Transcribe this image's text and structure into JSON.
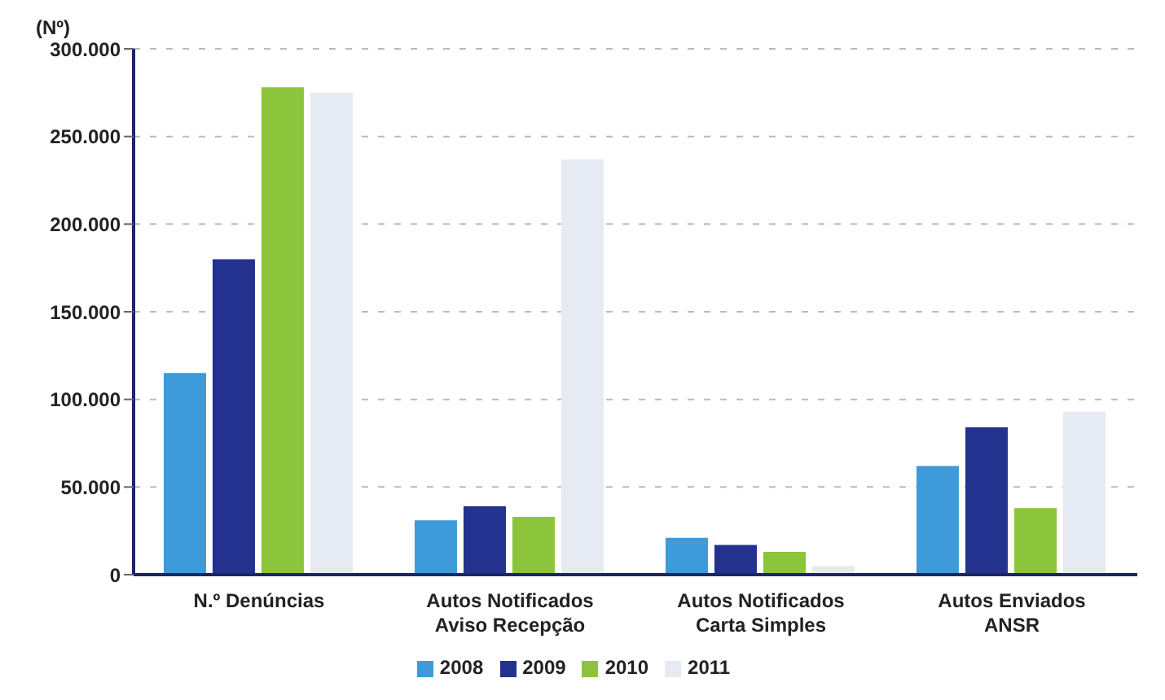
{
  "chart_data": {
    "type": "bar",
    "ylabel": "(Nº)",
    "categories": [
      "N.º Denúncias",
      "Autos Notificados\nAviso Recepção",
      "Autos Notificados\nCarta Simples",
      "Autos Enviados\nANSR"
    ],
    "series": [
      {
        "name": "2008",
        "color": "#3e9ad8",
        "values": [
          115000,
          31000,
          21000,
          62000
        ]
      },
      {
        "name": "2009",
        "color": "#23318f",
        "values": [
          180000,
          39000,
          17000,
          84000
        ]
      },
      {
        "name": "2010",
        "color": "#8cc43c",
        "values": [
          278000,
          33000,
          13000,
          38000
        ]
      },
      {
        "name": "2011",
        "color": "#e6ebf3",
        "values": [
          275000,
          237000,
          5000,
          93000
        ]
      }
    ],
    "ylim": [
      0,
      300000
    ],
    "yticks": [
      {
        "value": 0,
        "label": "0"
      },
      {
        "value": 50000,
        "label": "50.000"
      },
      {
        "value": 100000,
        "label": "100.000"
      },
      {
        "value": 150000,
        "label": "150.000"
      },
      {
        "value": 200000,
        "label": "200.000"
      },
      {
        "value": 250000,
        "label": "250.000"
      },
      {
        "value": 300000,
        "label": "300.000"
      }
    ],
    "grid": "y",
    "legend": "bottom"
  }
}
